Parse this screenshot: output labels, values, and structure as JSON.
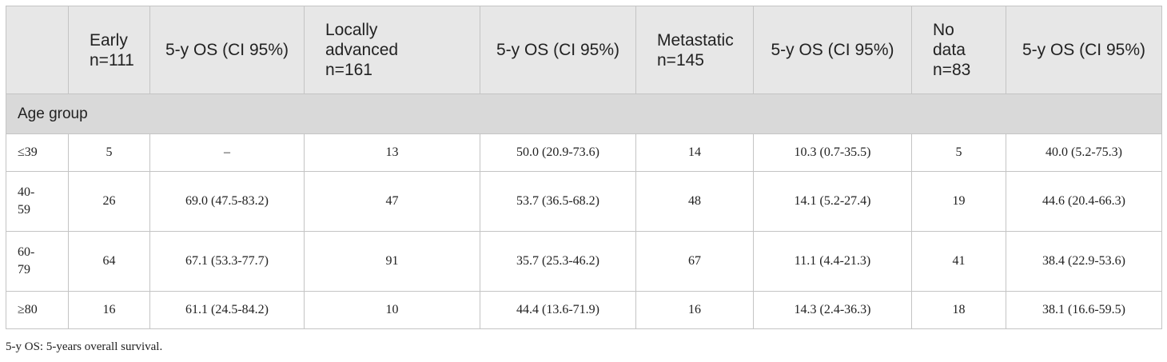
{
  "table": {
    "columns": [
      "",
      "Early\nn=111",
      "5-y OS (CI 95%)",
      "Locally\nadvanced\nn=161",
      "5-y OS (CI 95%)",
      "Metastatic\nn=145",
      "5-y OS (CI 95%)",
      "No\ndata\nn=83",
      "5-y OS (CI 95%)"
    ],
    "section": "Age group",
    "rows": [
      [
        "≤39",
        "5",
        "–",
        "13",
        "50.0 (20.9-73.6)",
        "14",
        "10.3 (0.7-35.5)",
        "5",
        "40.0 (5.2-75.3)"
      ],
      [
        "40-59",
        "26",
        "69.0 (47.5-83.2)",
        "47",
        "53.7 (36.5-68.2)",
        "48",
        "14.1 (5.2-27.4)",
        "19",
        "44.6 (20.4-66.3)"
      ],
      [
        "60-79",
        "64",
        "67.1 (53.3-77.7)",
        "91",
        "35.7 (25.3-46.2)",
        "67",
        "11.1 (4.4-21.3)",
        "41",
        "38.4 (22.9-53.6)"
      ],
      [
        "≥80",
        "16",
        "61.1 (24.5-84.2)",
        "10",
        "44.4 (13.6-71.9)",
        "16",
        "14.3 (2.4-36.3)",
        "18",
        "38.1 (16.6-59.5)"
      ]
    ]
  },
  "footnote": "5-y OS: 5-years overall survival."
}
